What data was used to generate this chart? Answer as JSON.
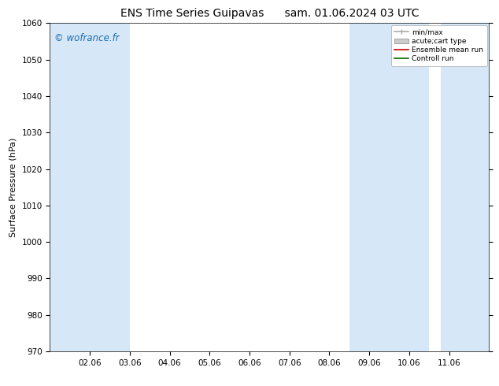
{
  "title_left": "ENS Time Series Guipavas",
  "title_right": "sam. 01.06.2024 03 UTC",
  "ylabel": "Surface Pressure (hPa)",
  "ylim": [
    970,
    1060
  ],
  "yticks": [
    970,
    980,
    990,
    1000,
    1010,
    1020,
    1030,
    1040,
    1050,
    1060
  ],
  "x_tick_labels": [
    "02.06",
    "03.06",
    "04.06",
    "05.06",
    "06.06",
    "07.06",
    "08.06",
    "09.06",
    "10.06",
    "11.06"
  ],
  "x_tick_positions": [
    1,
    2,
    3,
    4,
    5,
    6,
    7,
    8,
    9,
    10
  ],
  "xlim": [
    0,
    11
  ],
  "background_color": "#ffffff",
  "plot_bg_color": "#ffffff",
  "shaded_spans": [
    {
      "xmin": 0.0,
      "xmax": 2.0,
      "color": "#d6e8f7"
    },
    {
      "xmin": 7.5,
      "xmax": 9.5,
      "color": "#d6e8f7"
    },
    {
      "xmin": 9.8,
      "xmax": 11.0,
      "color": "#d6e8f7"
    }
  ],
  "legend_entries": [
    {
      "label": "min/max",
      "color": "#aaaaaa",
      "lw": 1.2,
      "style": "minmax"
    },
    {
      "label": "acute;cart type",
      "color": "#cccccc",
      "lw": 6,
      "style": "fill"
    },
    {
      "label": "Ensemble mean run",
      "color": "#cc0000",
      "lw": 1.2,
      "style": "line"
    },
    {
      "label": "Controll run",
      "color": "#006600",
      "lw": 1.2,
      "style": "line"
    }
  ],
  "watermark": "© wofrance.fr",
  "watermark_color": "#1a6cb0",
  "title_fontsize": 10,
  "label_fontsize": 8,
  "tick_fontsize": 7.5
}
